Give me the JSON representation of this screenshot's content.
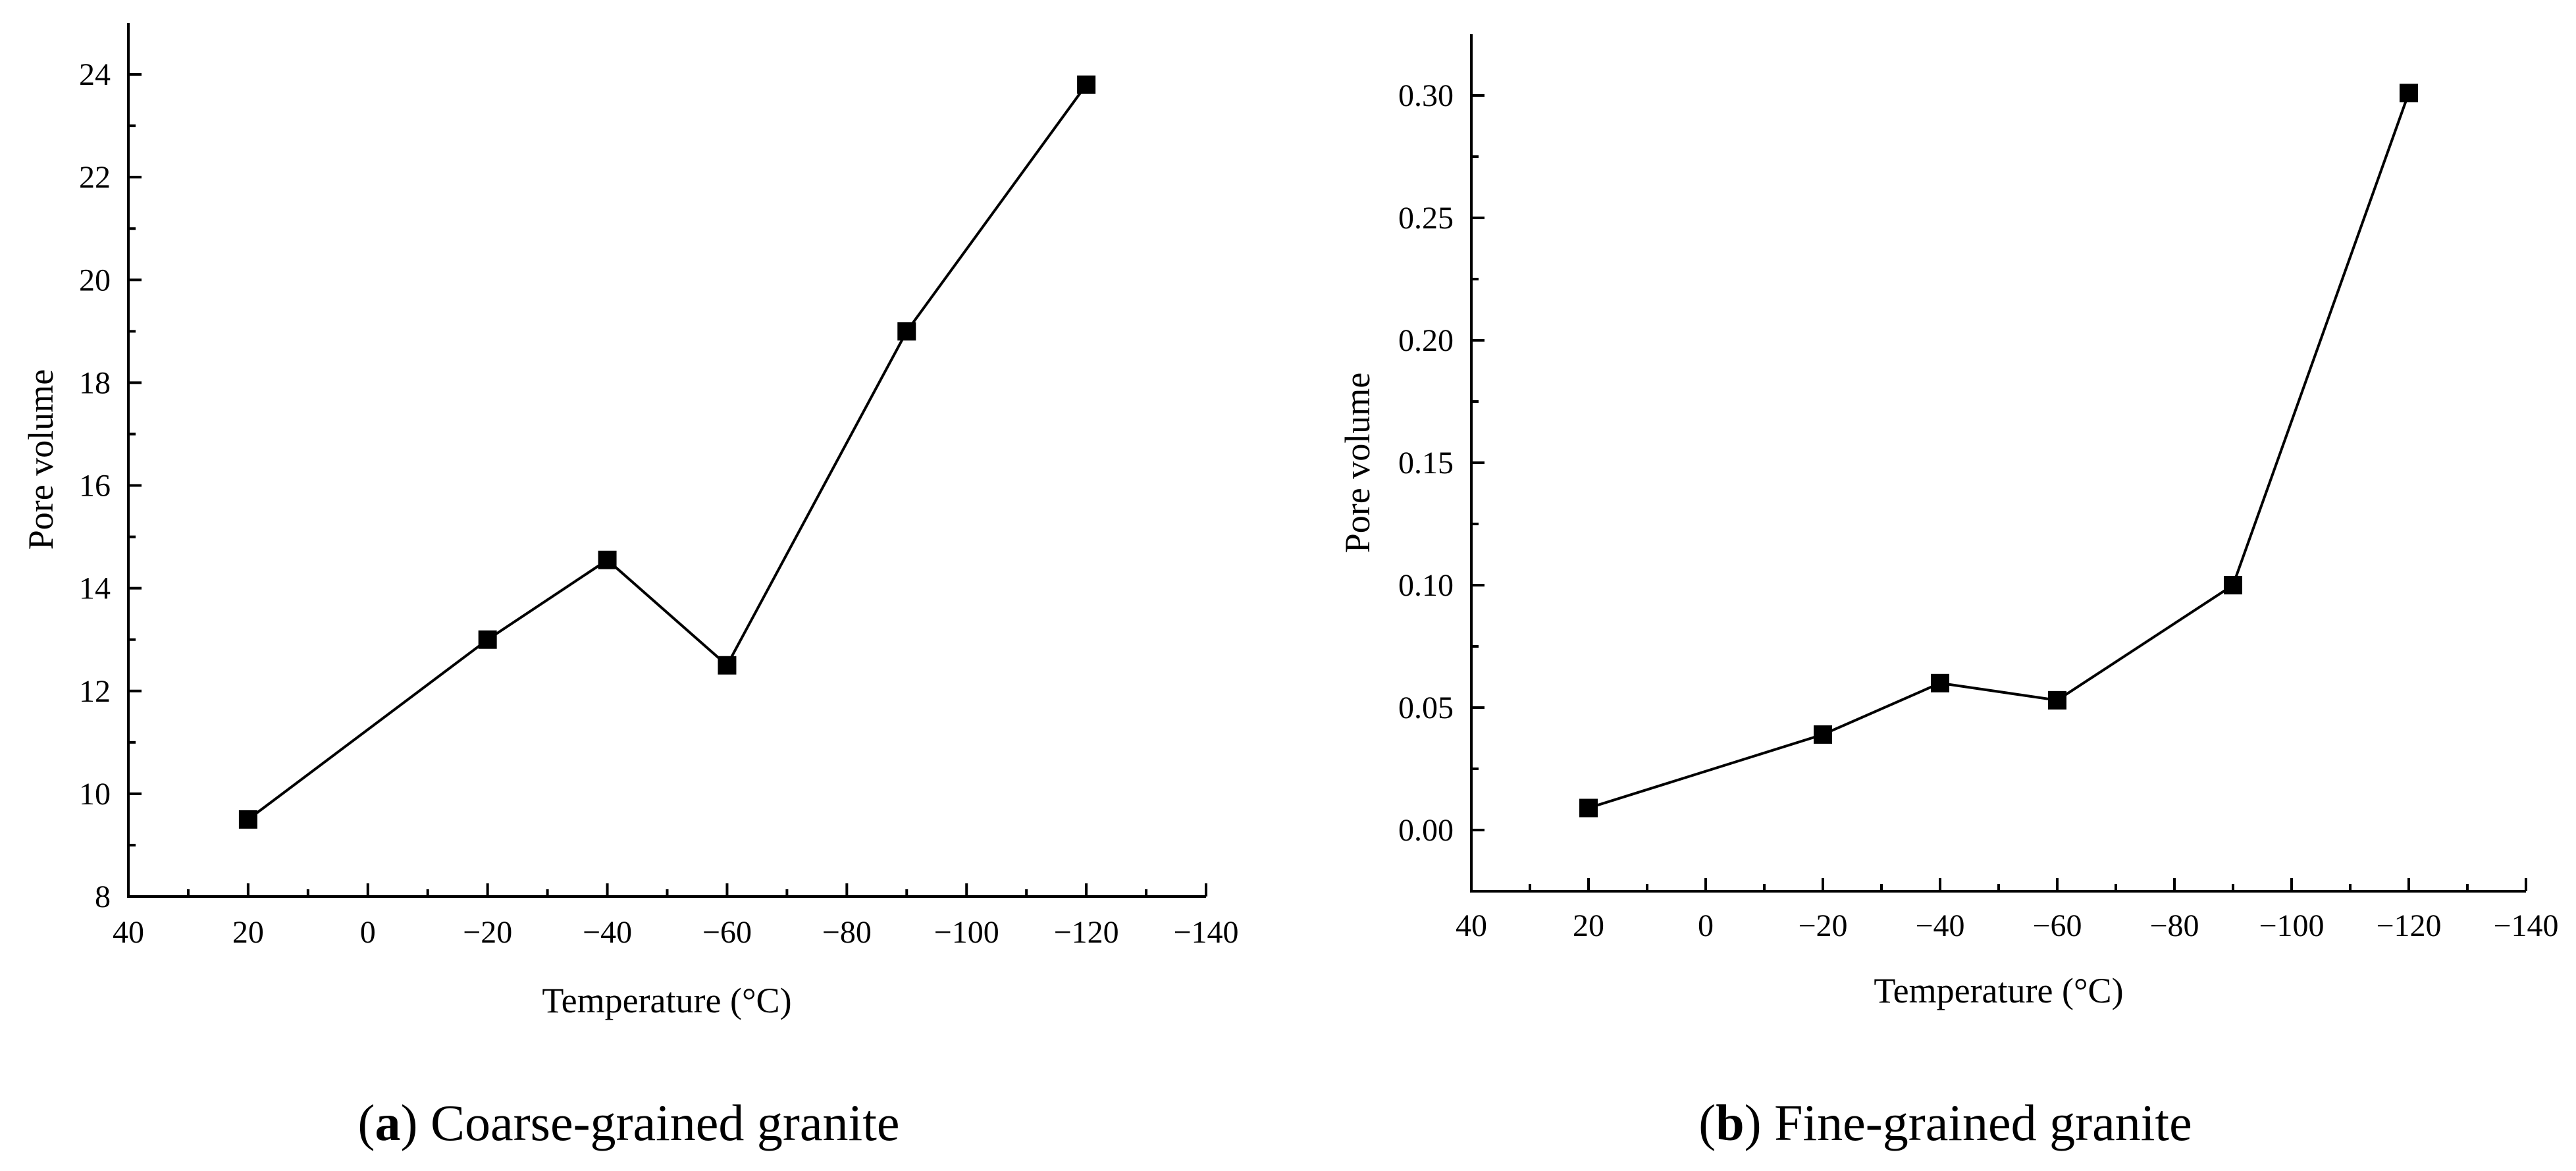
{
  "chart_data": [
    {
      "type": "line",
      "panel_label": "a",
      "caption_text": " Coarse-grained granite",
      "xlabel": "Temperature (°C)",
      "ylabel": "Pore volume",
      "x_reversed": true,
      "xlim": [
        40,
        -140
      ],
      "ylim": [
        8,
        25
      ],
      "xticks": [
        40,
        20,
        0,
        -20,
        -40,
        -60,
        -80,
        -100,
        -120,
        -140
      ],
      "xtick_labels": [
        "40",
        "20",
        "0",
        "−20",
        "−40",
        "−60",
        "−80",
        "−100",
        "−120",
        "−140"
      ],
      "yticks": [
        8,
        10,
        12,
        14,
        16,
        18,
        20,
        22,
        24
      ],
      "ytick_labels": [
        "8",
        "10",
        "12",
        "14",
        "16",
        "18",
        "20",
        "22",
        "24"
      ],
      "grid": false,
      "marker": "square",
      "color": "#000000",
      "series": [
        {
          "x": [
            20,
            -20,
            -40,
            -60,
            -90,
            -120
          ],
          "y": [
            9.5,
            13.0,
            14.55,
            12.5,
            19.0,
            23.8
          ]
        }
      ]
    },
    {
      "type": "line",
      "panel_label": "b",
      "caption_text": " Fine-grained granite",
      "xlabel": "Temperature (°C)",
      "ylabel": "Pore volume",
      "x_reversed": true,
      "xlim": [
        40,
        -140
      ],
      "ylim": [
        -0.025,
        0.325
      ],
      "xticks": [
        40,
        20,
        0,
        -20,
        -40,
        -60,
        -80,
        -100,
        -120,
        -140
      ],
      "xtick_labels": [
        "40",
        "20",
        "0",
        "−20",
        "−40",
        "−60",
        "−80",
        "−100",
        "−120",
        "−140"
      ],
      "yticks": [
        0.0,
        0.05,
        0.1,
        0.15,
        0.2,
        0.25,
        0.3
      ],
      "ytick_labels": [
        "0.00",
        "0.05",
        "0.10",
        "0.15",
        "0.20",
        "0.25",
        "0.30"
      ],
      "grid": false,
      "marker": "square",
      "color": "#000000",
      "series": [
        {
          "x": [
            20,
            -20,
            -40,
            -60,
            -90,
            -120
          ],
          "y": [
            0.009,
            0.039,
            0.06,
            0.053,
            0.1,
            0.301
          ]
        }
      ]
    }
  ]
}
